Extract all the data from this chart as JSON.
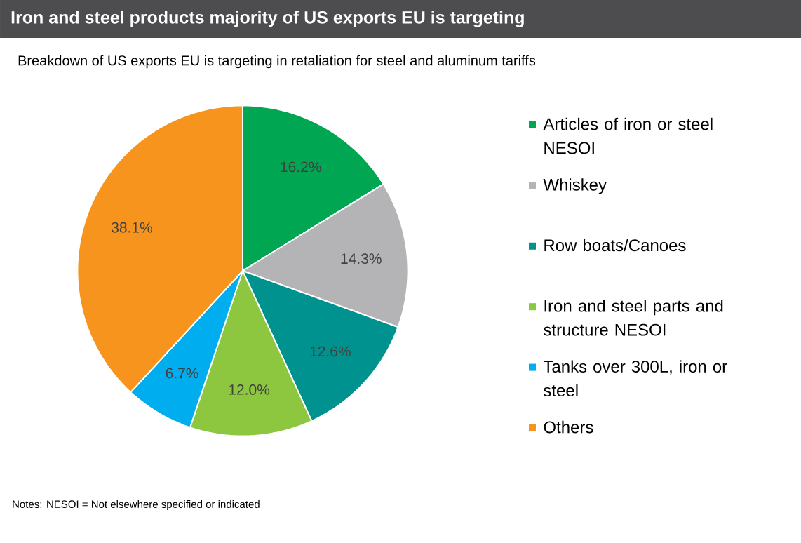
{
  "chart_data": {
    "type": "pie",
    "title": "Iron and steel products majority of US exports EU is targeting",
    "subtitle": "Breakdown of US exports EU is targeting in retaliation for steel and aluminum tariffs",
    "categories": [
      "Articles of iron or steel NESOI",
      "Whiskey",
      "Row boats/Canoes",
      "Iron and steel parts and structure NESOI",
      "Tanks over 300L, iron or steel",
      "Others"
    ],
    "values": [
      16.2,
      14.3,
      12.6,
      12.0,
      6.7,
      38.1
    ],
    "colors": [
      "#00a651",
      "#b4b4b6",
      "#00928f",
      "#8dc63f",
      "#00aeef",
      "#f7941d"
    ],
    "value_labels": [
      "16.2%",
      "14.3%",
      "12.6%",
      "12.0%",
      "6.7%",
      "38.1%"
    ],
    "legend": "right",
    "annotations": [
      "Notes: NESOI = Not elsewhere specified or indicated"
    ]
  }
}
